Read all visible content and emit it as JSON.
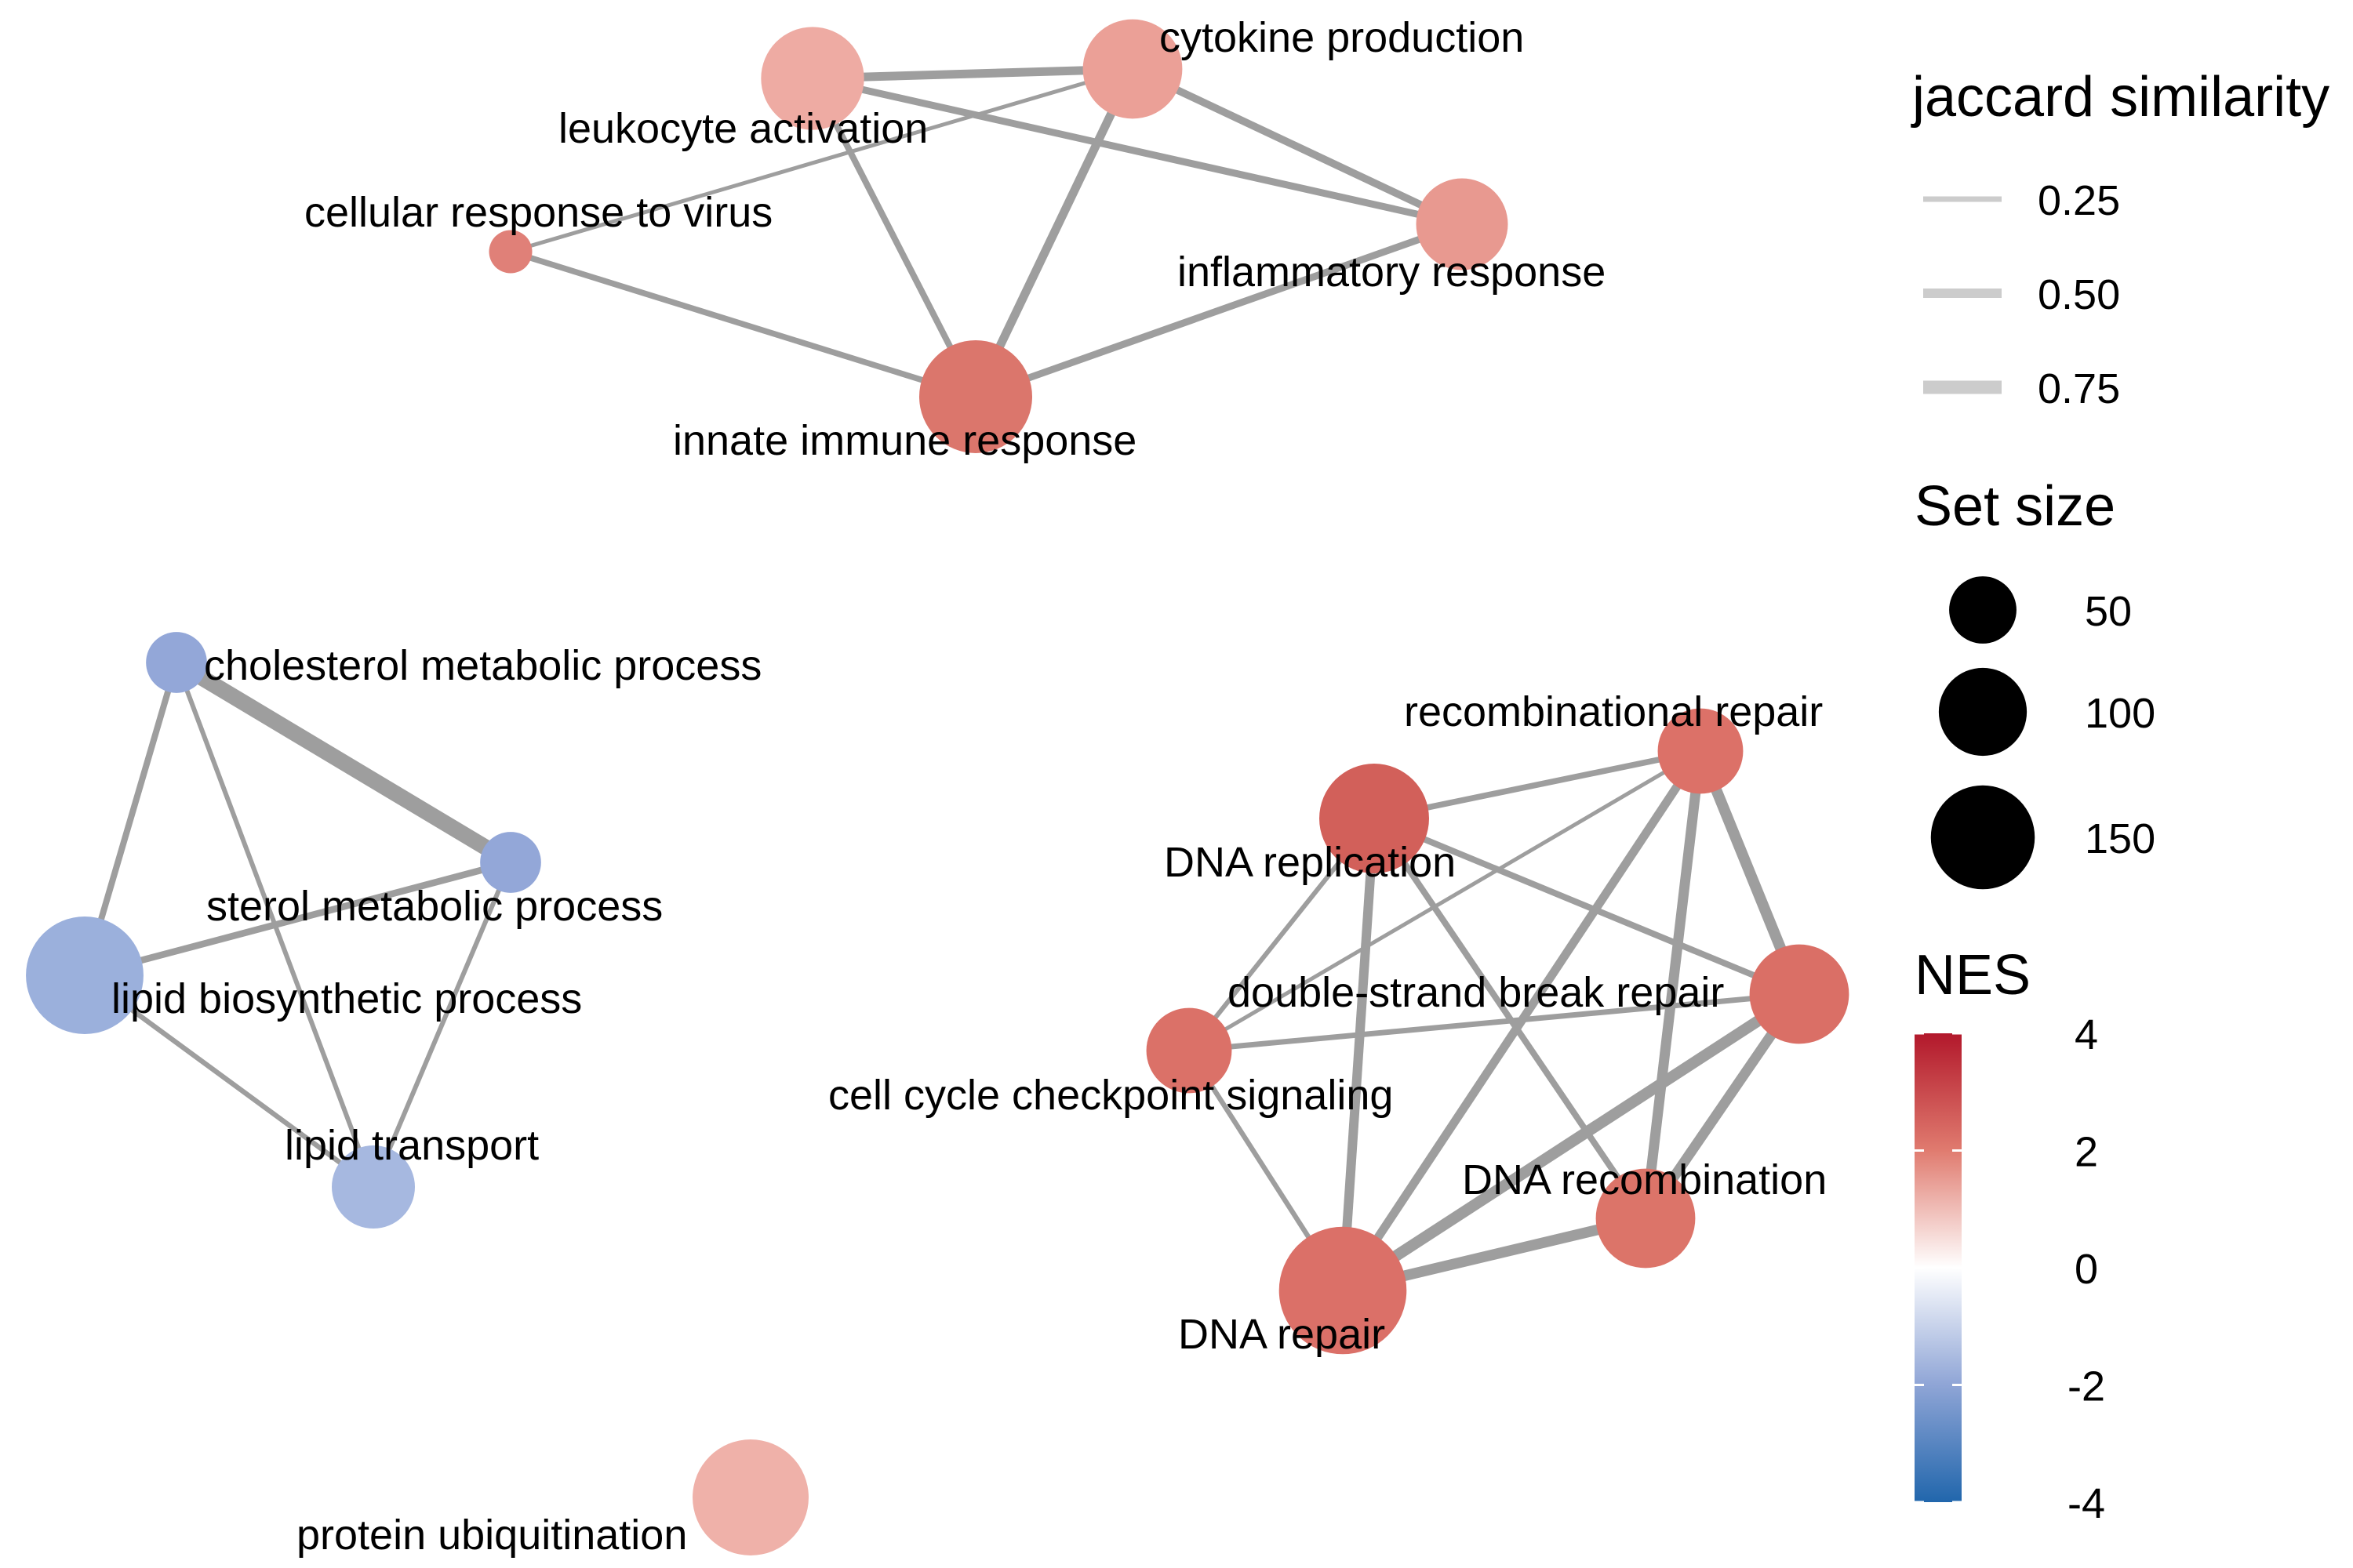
{
  "colors": {
    "edge": "#9e9e9e",
    "legend_edge": "#cccccc",
    "positive": "#cc4c41",
    "negative": "#6a8dce"
  },
  "network": {
    "nodes": [
      {
        "id": "leukocyte_activation",
        "label": "leukocyte activation",
        "nes": 1.4,
        "size": 120,
        "color": "#eeaba3"
      },
      {
        "id": "cytokine_production",
        "label": "cytokine production",
        "nes": 1.6,
        "size": 110,
        "color": "#eba097"
      },
      {
        "id": "cellular_response_to_virus",
        "label": "cellular response to virus",
        "nes": 2.2,
        "size": 10,
        "color": "#e08078"
      },
      {
        "id": "inflammatory_response",
        "label": "inflammatory response",
        "nes": 1.8,
        "size": 90,
        "color": "#e89990"
      },
      {
        "id": "innate_immune_response",
        "label": "innate immune response",
        "nes": 2.3,
        "size": 150,
        "color": "#db766c"
      },
      {
        "id": "cholesterol_metabolic_process",
        "label": "cholesterol metabolic process",
        "nes": -1.9,
        "size": 30,
        "color": "#93a7d8"
      },
      {
        "id": "sterol_metabolic_process",
        "label": "sterol metabolic process",
        "nes": -1.9,
        "size": 30,
        "color": "#93a7d8"
      },
      {
        "id": "lipid_biosynthetic_process",
        "label": "lipid biosynthetic process",
        "nes": -1.8,
        "size": 165,
        "color": "#9bb0dc"
      },
      {
        "id": "lipid_transport",
        "label": "lipid transport",
        "nes": -1.6,
        "size": 70,
        "color": "#a6b8e0"
      },
      {
        "id": "recombinational_repair",
        "label": "recombinational repair",
        "nes": 2.4,
        "size": 75,
        "color": "#dc7168"
      },
      {
        "id": "dna_replication",
        "label": "DNA replication",
        "nes": 2.8,
        "size": 140,
        "color": "#d2605a"
      },
      {
        "id": "double_strand_break_repair",
        "label": "double-strand break repair",
        "nes": 2.5,
        "size": 110,
        "color": "#da6f66"
      },
      {
        "id": "cell_cycle_checkpoint_signaling",
        "label": "cell cycle checkpoint signaling",
        "nes": 2.5,
        "size": 75,
        "color": "#db7168"
      },
      {
        "id": "dna_recombination",
        "label": "DNA recombination",
        "nes": 2.4,
        "size": 110,
        "color": "#dc7469"
      },
      {
        "id": "dna_repair",
        "label": "DNA repair",
        "nes": 2.5,
        "size": 200,
        "color": "#db7068"
      },
      {
        "id": "protein_ubiquitination",
        "label": "protein ubiquitination",
        "nes": 1.3,
        "size": 160,
        "color": "#efb1a9"
      }
    ],
    "edges": [
      {
        "source": "leukocyte_activation",
        "target": "cytokine_production",
        "jaccard": 0.45
      },
      {
        "source": "leukocyte_activation",
        "target": "inflammatory_response",
        "jaccard": 0.35
      },
      {
        "source": "leukocyte_activation",
        "target": "innate_immune_response",
        "jaccard": 0.3
      },
      {
        "source": "cytokine_production",
        "target": "cellular_response_to_virus",
        "jaccard": 0.15
      },
      {
        "source": "cytokine_production",
        "target": "inflammatory_response",
        "jaccard": 0.38
      },
      {
        "source": "cytokine_production",
        "target": "innate_immune_response",
        "jaccard": 0.45
      },
      {
        "source": "cellular_response_to_virus",
        "target": "innate_immune_response",
        "jaccard": 0.28
      },
      {
        "source": "inflammatory_response",
        "target": "innate_immune_response",
        "jaccard": 0.35
      },
      {
        "source": "cholesterol_metabolic_process",
        "target": "sterol_metabolic_process",
        "jaccard": 0.92
      },
      {
        "source": "cholesterol_metabolic_process",
        "target": "lipid_biosynthetic_process",
        "jaccard": 0.3
      },
      {
        "source": "cholesterol_metabolic_process",
        "target": "lipid_transport",
        "jaccard": 0.2
      },
      {
        "source": "sterol_metabolic_process",
        "target": "lipid_biosynthetic_process",
        "jaccard": 0.33
      },
      {
        "source": "sterol_metabolic_process",
        "target": "lipid_transport",
        "jaccard": 0.2
      },
      {
        "source": "lipid_biosynthetic_process",
        "target": "lipid_transport",
        "jaccard": 0.22
      },
      {
        "source": "recombinational_repair",
        "target": "dna_replication",
        "jaccard": 0.28
      },
      {
        "source": "recombinational_repair",
        "target": "cell_cycle_checkpoint_signaling",
        "jaccard": 0.15
      },
      {
        "source": "recombinational_repair",
        "target": "double_strand_break_repair",
        "jaccard": 0.6
      },
      {
        "source": "recombinational_repair",
        "target": "dna_recombination",
        "jaccard": 0.55
      },
      {
        "source": "recombinational_repair",
        "target": "dna_repair",
        "jaccard": 0.45
      },
      {
        "source": "dna_replication",
        "target": "double_strand_break_repair",
        "jaccard": 0.3
      },
      {
        "source": "dna_replication",
        "target": "cell_cycle_checkpoint_signaling",
        "jaccard": 0.2
      },
      {
        "source": "dna_replication",
        "target": "dna_recombination",
        "jaccard": 0.3
      },
      {
        "source": "dna_replication",
        "target": "dna_repair",
        "jaccard": 0.5
      },
      {
        "source": "double_strand_break_repair",
        "target": "cell_cycle_checkpoint_signaling",
        "jaccard": 0.25
      },
      {
        "source": "double_strand_break_repair",
        "target": "dna_recombination",
        "jaccard": 0.55
      },
      {
        "source": "double_strand_break_repair",
        "target": "dna_repair",
        "jaccard": 0.62
      },
      {
        "source": "cell_cycle_checkpoint_signaling",
        "target": "dna_repair",
        "jaccard": 0.22
      },
      {
        "source": "dna_recombination",
        "target": "dna_repair",
        "jaccard": 0.58
      }
    ]
  },
  "legend": {
    "jaccard": {
      "title": "jaccard similarity",
      "entries": [
        {
          "label": "0.25",
          "value": 0.25
        },
        {
          "label": "0.50",
          "value": 0.5
        },
        {
          "label": "0.75",
          "value": 0.75
        }
      ]
    },
    "size": {
      "title": "Set size",
      "entries": [
        {
          "label": "50",
          "value": 50
        },
        {
          "label": "100",
          "value": 100
        },
        {
          "label": "150",
          "value": 150
        }
      ]
    },
    "nes": {
      "title": "NES",
      "ticks": [
        {
          "label": "4",
          "value": 4
        },
        {
          "label": "2",
          "value": 2
        },
        {
          "label": "0",
          "value": 0
        },
        {
          "label": "-2",
          "value": -2
        },
        {
          "label": "-4",
          "value": -4
        }
      ]
    }
  }
}
